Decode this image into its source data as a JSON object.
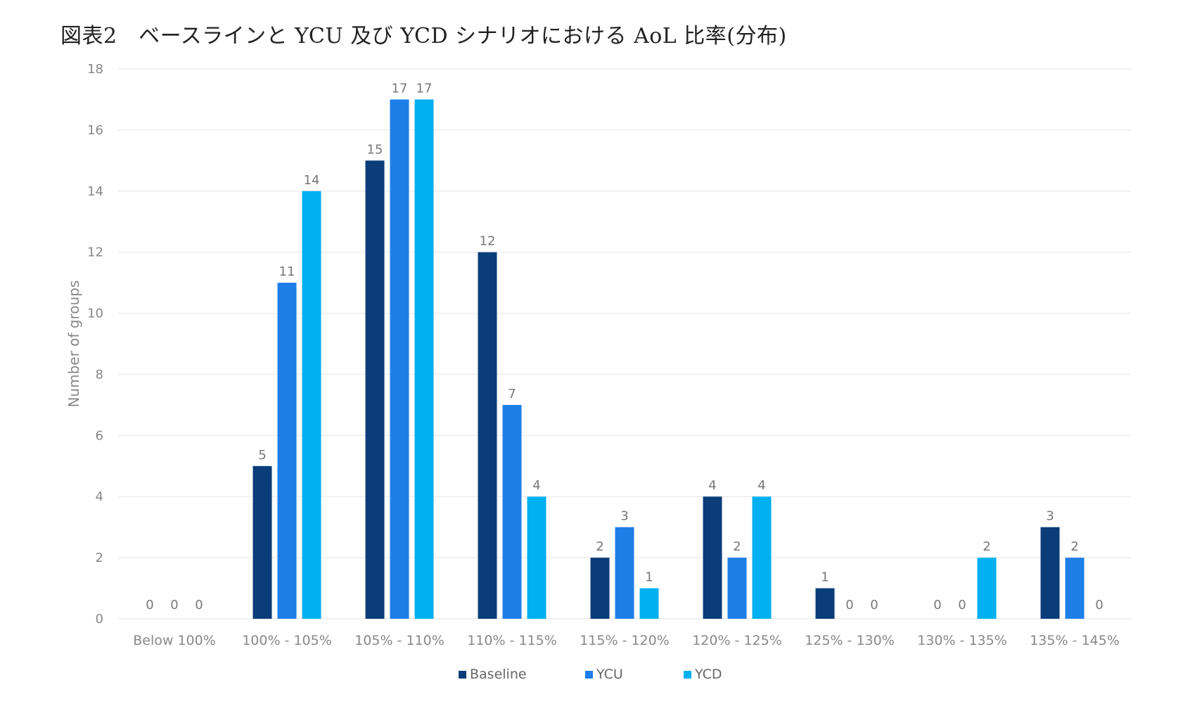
{
  "title": "図表2　ベースラインと YCU 及び YCD シナリオにおける AoL 比率(分布)",
  "colors": {
    "Baseline": "#0b3d7a",
    "YCU": "#1e7ee8",
    "YCD": "#00b0f0"
  },
  "chart_data": {
    "type": "bar",
    "ylabel": "Number of groups",
    "xlabel": "",
    "ylim": [
      0,
      18
    ],
    "yticks": [
      0,
      2,
      4,
      6,
      8,
      10,
      12,
      14,
      16,
      18
    ],
    "grid": true,
    "legend_position": "bottom",
    "categories": [
      "Below 100%",
      "100% - 105%",
      "105% - 110%",
      "110% - 115%",
      "115% - 120%",
      "120% - 125%",
      "125% - 130%",
      "130% - 135%",
      "135% - 145%"
    ],
    "series": [
      {
        "name": "Baseline",
        "values": [
          0,
          5,
          15,
          12,
          2,
          4,
          1,
          0,
          3
        ]
      },
      {
        "name": "YCU",
        "values": [
          0,
          11,
          17,
          7,
          3,
          2,
          0,
          0,
          2
        ]
      },
      {
        "name": "YCD",
        "values": [
          0,
          14,
          17,
          4,
          1,
          4,
          0,
          2,
          0
        ]
      }
    ]
  }
}
